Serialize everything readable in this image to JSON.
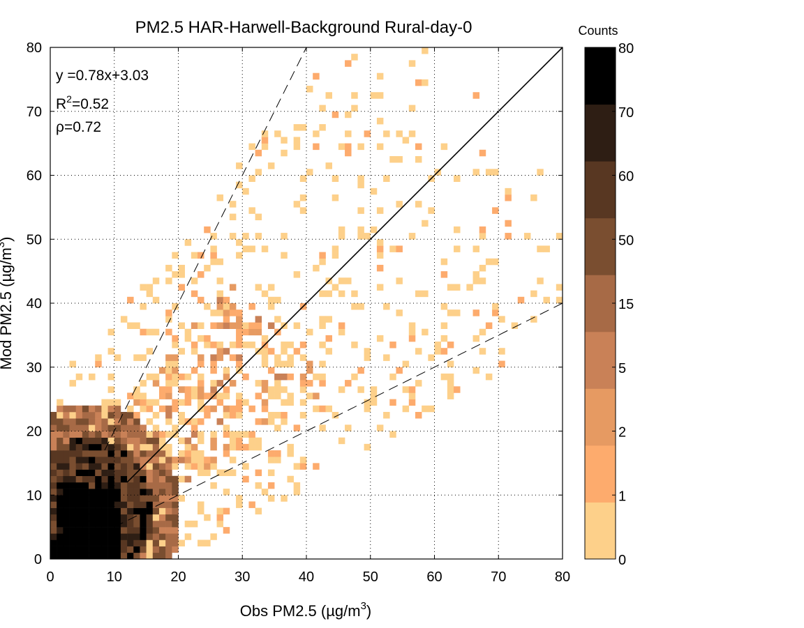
{
  "chart_data": {
    "type": "heatmap",
    "title": "PM2.5 HAR-Harwell-Background Rural-day-0",
    "xlabel": "Obs PM2.5 (µg/m³)",
    "xlabel_main": "Obs PM2.5 (µg/m",
    "xlabel_sup": "3",
    "xlabel_close": ")",
    "ylabel": "Mod PM2.5 (µg/m³)",
    "ylabel_main": "Mod PM2.5 (µg/m",
    "ylabel_sup": "3",
    "ylabel_close": ")",
    "xlim": [
      0,
      80
    ],
    "ylim": [
      0,
      80
    ],
    "xticks": [
      0,
      10,
      20,
      30,
      40,
      50,
      60,
      70,
      80
    ],
    "yticks": [
      0,
      10,
      20,
      30,
      40,
      50,
      60,
      70,
      80
    ],
    "grid": true,
    "bin_size": 1,
    "regression": {
      "slope": 0.78,
      "intercept": 3.03,
      "r2": 0.52,
      "rho": 0.72
    },
    "stats_text": {
      "line1": "y =0.78x+3.03",
      "r2_prefix": "R",
      "r2_sup": "2",
      "r2_value": "=0.52",
      "rho": "ρ=0.72"
    },
    "reference_lines": [
      {
        "name": "1:1",
        "slope": 1,
        "style": "solid"
      },
      {
        "name": "2:1",
        "slope": 2,
        "style": "dashed"
      },
      {
        "name": "1:2",
        "slope": 0.5,
        "style": "dashed"
      }
    ],
    "colorbar": {
      "title": "Counts",
      "labels": [
        "0",
        "1",
        "2",
        "5",
        "15",
        "50",
        "60",
        "70",
        "80"
      ],
      "colors": [
        "#fdd08a",
        "#fdab6d",
        "#e69a62",
        "#c98157",
        "#a76a46",
        "#7a4e30",
        "#583722",
        "#2e1e14",
        "#000000"
      ]
    },
    "regions": [
      {
        "label": "core",
        "x_range": [
          1,
          11
        ],
        "y_range": [
          0,
          12
        ],
        "count_level": "70-80"
      },
      {
        "label": "dense ring",
        "x_range": [
          0,
          20
        ],
        "y_range": [
          0,
          24
        ],
        "count_level": "15-60"
      },
      {
        "label": "moderate",
        "x_range": [
          5,
          40
        ],
        "y_range": [
          3,
          43
        ],
        "count_level": "2-15"
      },
      {
        "label": "sparse",
        "x_range": [
          0,
          78
        ],
        "y_range": [
          0,
          67
        ],
        "count_level": "0-2"
      }
    ]
  }
}
